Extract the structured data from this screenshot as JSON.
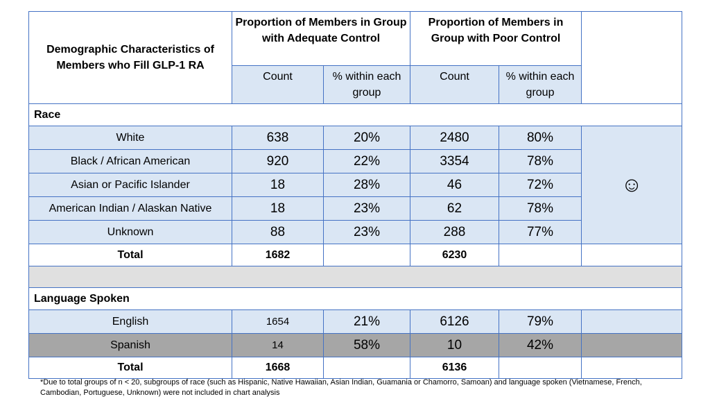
{
  "header": {
    "demographic_title": "Demographic Characteristics of Members who Fill GLP-1 RA",
    "group_adequate": "Proportion of Members in Group with Adequate Control",
    "group_poor": "Proportion of Members in Group with Poor Control",
    "count_label": "Count",
    "pct_label_1": "% within each group",
    "pct_label_2": "% within each group"
  },
  "race": {
    "label": "Race",
    "rows": [
      {
        "category": "White",
        "adequate_count": "638",
        "adequate_pct": "20%",
        "poor_count": "2480",
        "poor_pct": "80%"
      },
      {
        "category": "Black / African American",
        "adequate_count": "920",
        "adequate_pct": "22%",
        "poor_count": "3354",
        "poor_pct": "78%"
      },
      {
        "category": "Asian or Pacific Islander",
        "adequate_count": "18",
        "adequate_pct": "28%",
        "poor_count": "46",
        "poor_pct": "72%"
      },
      {
        "category": "American Indian / Alaskan Native",
        "adequate_count": "18",
        "adequate_pct": "23%",
        "poor_count": "62",
        "poor_pct": "78%"
      },
      {
        "category": "Unknown",
        "adequate_count": "88",
        "adequate_pct": "23%",
        "poor_count": "288",
        "poor_pct": "77%"
      }
    ],
    "total": {
      "label": "Total",
      "adequate_count": "1682",
      "poor_count": "6230"
    }
  },
  "language": {
    "label": "Language Spoken",
    "rows": [
      {
        "category": "English",
        "adequate_count": "1654",
        "adequate_pct": "21%",
        "poor_count": "6126",
        "poor_pct": "79%"
      },
      {
        "category": "Spanish",
        "adequate_count": "14",
        "adequate_pct": "58%",
        "poor_count": "10",
        "poor_pct": "42%"
      }
    ],
    "total": {
      "label": "Total",
      "adequate_count": "1668",
      "poor_count": "6136"
    }
  },
  "smiley_icon": "☺",
  "footnote": "*Due to total groups of n < 20, subgroups of race (such as Hispanic, Native Hawaiian, Asian Indian, Guamania or Chamorro, Samoan) and language spoken (Vietnamese, French, Cambodian, Portuguese, Unknown) were not included in chart analysis",
  "colors": {
    "border": "#4472c4",
    "row_fill": "#dae6f4",
    "gray_row": "#a6a6a6",
    "spacer": "#e0e0e0"
  }
}
